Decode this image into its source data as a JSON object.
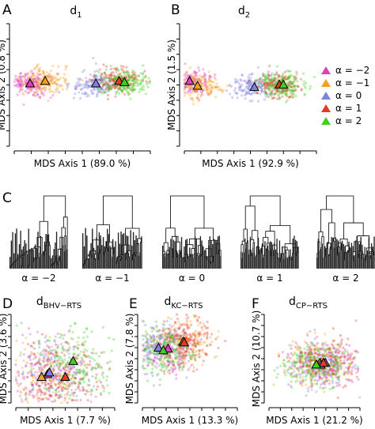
{
  "chart_data": [
    {
      "type": "scatter",
      "panel": "A",
      "title": "d",
      "title_sub": "1",
      "x_label": "MDS Axis 1 (89.0 %)",
      "y_label": "MDS Axis 2 (0.8 %)",
      "xlim": [
        0,
        100
      ],
      "ylim": [
        0,
        100
      ],
      "series": [
        {
          "color": "#e040c0",
          "x": [
            11.6
          ],
          "values": [
            51
          ]
        },
        {
          "color": "#f5a020",
          "x": [
            22.7
          ],
          "values": [
            53
          ]
        },
        {
          "color": "#8080e0",
          "x": [
            60
          ],
          "values": [
            51
          ]
        },
        {
          "color": "#e04020",
          "x": [
            77
          ],
          "values": [
            53
          ]
        },
        {
          "color": "#40d020",
          "x": [
            81
          ],
          "values": [
            52
          ]
        }
      ]
    },
    {
      "type": "scatter",
      "panel": "B",
      "title": "d",
      "title_sub": "2",
      "x_label": "MDS Axis 1 (92.9 %)",
      "y_label": "MDS Axis 2 (1.5 %)",
      "xlim": [
        0,
        100
      ],
      "ylim": [
        0,
        100
      ],
      "series": [
        {
          "name": "α = −2",
          "color": "#e040c0",
          "x": [
            4
          ],
          "values": [
            53
          ]
        },
        {
          "name": "α = −1",
          "color": "#f5a020",
          "x": [
            10
          ],
          "values": [
            49
          ]
        },
        {
          "name": "α = 0",
          "color": "#8080e0",
          "x": [
            53
          ],
          "values": [
            48
          ]
        },
        {
          "name": "α = 1",
          "color": "#e04020",
          "x": [
            72
          ],
          "values": [
            50
          ]
        },
        {
          "name": "α = 2",
          "color": "#40d020",
          "x": [
            75
          ],
          "values": [
            50
          ]
        }
      ]
    },
    {
      "type": "scatter",
      "panel": "D",
      "title": "d",
      "title_sub": "BHV−RTS",
      "x_label": "MDS Axis 1 (7.7 %)",
      "y_label": "MDS Axis 2 (3.6 %)",
      "xlim": [
        0,
        100
      ],
      "ylim": [
        0,
        100
      ],
      "series": [
        {
          "color": "#e040c0",
          "x": [
            32
          ],
          "values": [
            32
          ]
        },
        {
          "color": "#f5a020",
          "x": [
            26
          ],
          "values": [
            29
          ]
        },
        {
          "color": "#8080e0",
          "x": [
            34
          ],
          "values": [
            34
          ]
        },
        {
          "color": "#e04020",
          "x": [
            50
          ],
          "values": [
            29
          ]
        },
        {
          "color": "#40d020",
          "x": [
            58
          ],
          "values": [
            47
          ]
        }
      ]
    },
    {
      "type": "scatter",
      "panel": "E",
      "title": "d",
      "title_sub": "KC−RTS",
      "x_label": "MDS Axis 1 (13.3 %)",
      "y_label": "MDS Axis 2 (7.8 %)",
      "xlim": [
        0,
        100
      ],
      "ylim": [
        0,
        100
      ],
      "series": [
        {
          "color": "#e040c0",
          "x": [
            27
          ],
          "values": [
            61
          ]
        },
        {
          "color": "#f5a020",
          "x": [
            43
          ],
          "values": [
            69
          ]
        },
        {
          "color": "#8080e0",
          "x": [
            17
          ],
          "values": [
            62
          ]
        },
        {
          "color": "#e04020",
          "x": [
            44
          ],
          "values": [
            68
          ]
        },
        {
          "color": "#40d020",
          "x": [
            22
          ],
          "values": [
            59
          ]
        }
      ]
    },
    {
      "type": "scatter",
      "panel": "F",
      "title": "d",
      "title_sub": "CP−RTS",
      "x_label": "MDS Axis 1 (21.2 %)",
      "y_label": "MDS Axis 2 (10.7 %)",
      "xlim": [
        0,
        100
      ],
      "ylim": [
        0,
        100
      ],
      "series": [
        {
          "color": "#e040c0",
          "x": [
            62
          ],
          "values": [
            45
          ]
        },
        {
          "color": "#f5a020",
          "x": [
            56
          ],
          "values": [
            45
          ]
        },
        {
          "color": "#8080e0",
          "x": [
            57
          ],
          "values": [
            43
          ]
        },
        {
          "color": "#e04020",
          "x": [
            60
          ],
          "values": [
            45
          ]
        },
        {
          "color": "#40d020",
          "x": [
            52
          ],
          "values": [
            43
          ]
        }
      ]
    }
  ],
  "dendrograms": {
    "panel": "C",
    "labels": [
      "α = −2",
      "α = −1",
      "α = 0",
      "α = 1",
      "α = 2"
    ]
  }
}
